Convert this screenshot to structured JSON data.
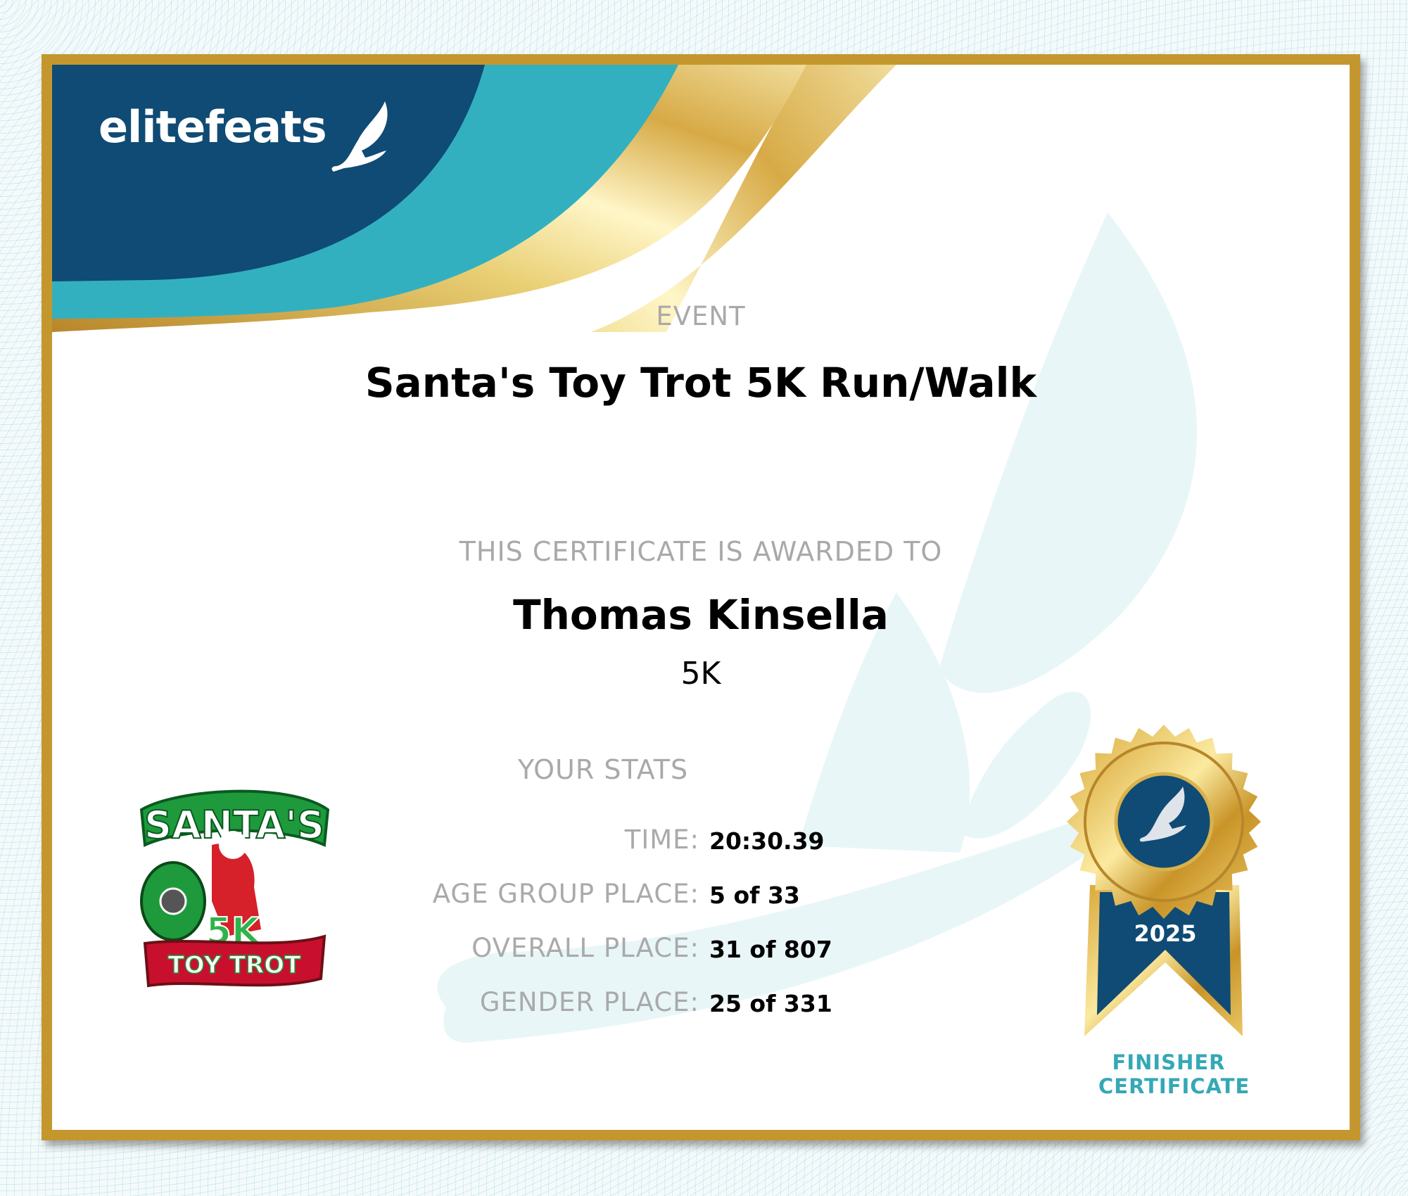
{
  "brand": {
    "name": "elitefeats",
    "colors": {
      "navy": "#0f4b74",
      "teal": "#33b0c0",
      "gold": "#c4972e"
    }
  },
  "certificate": {
    "event_label": "EVENT",
    "event_name": "Santa's Toy Trot 5K Run/Walk",
    "awarded_label": "THIS CERTIFICATE IS AWARDED TO",
    "recipient": "Thomas Kinsella",
    "race": "5K",
    "stats_label": "YOUR STATS",
    "stats": [
      {
        "label": "TIME:",
        "value": "20:30.39"
      },
      {
        "label": "AGE GROUP PLACE:",
        "value": "5 of 33"
      },
      {
        "label": "OVERALL PLACE:",
        "value": "31 of 807"
      },
      {
        "label": "GENDER PLACE:",
        "value": "25 of 331"
      }
    ]
  },
  "event_logo": {
    "text": "SANTA'S 5K TOY TROT"
  },
  "medal": {
    "year": "2025",
    "line1": "FINISHER",
    "line2": "CERTIFICATE",
    "icon": "winged-foot-icon"
  }
}
